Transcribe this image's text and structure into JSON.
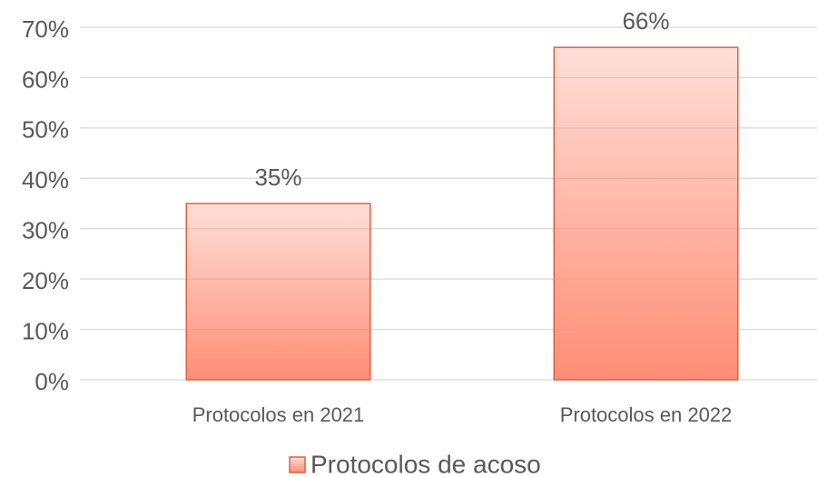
{
  "chart_data": {
    "type": "bar",
    "categories": [
      "Protocolos en 2021",
      "Protocolos en 2022"
    ],
    "series": [
      {
        "name": "Protocolos de acoso",
        "color": "#ff8d75",
        "border_color": "#e0603f",
        "values": [
          35,
          66
        ],
        "value_labels": [
          "35%",
          "66%"
        ]
      }
    ],
    "ylim": [
      0,
      70
    ],
    "yticks": [
      {
        "value": 0,
        "label": "0%"
      },
      {
        "value": 10,
        "label": "10%"
      },
      {
        "value": 20,
        "label": "20%"
      },
      {
        "value": 30,
        "label": "30%"
      },
      {
        "value": 40,
        "label": "40%"
      },
      {
        "value": 50,
        "label": "50%"
      },
      {
        "value": 60,
        "label": "60%"
      },
      {
        "value": 70,
        "label": "70%"
      }
    ],
    "grid": true,
    "legend": "bottom"
  }
}
